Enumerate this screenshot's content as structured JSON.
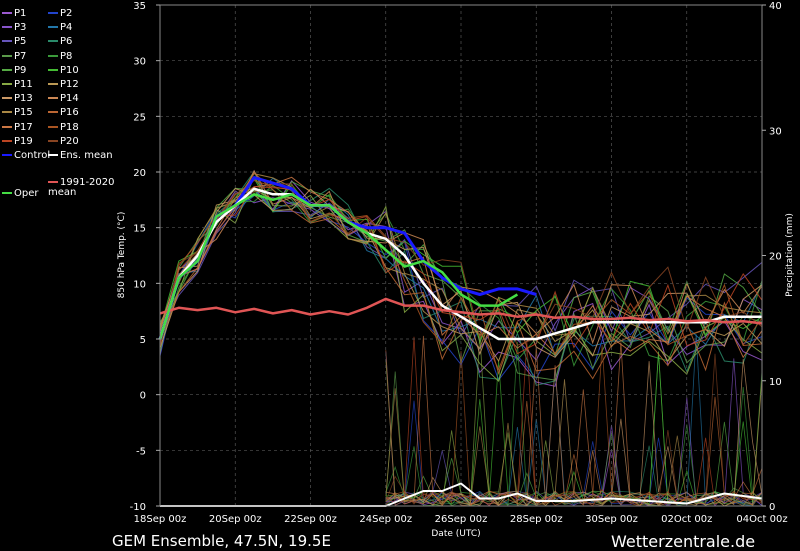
{
  "footer": {
    "model_label": "GEM Ensemble, 47.5N, 19.5E",
    "site_label": "Wetterzentrale.de"
  },
  "legend": {
    "items": [
      {
        "label": "P1",
        "color": "#9b59d0"
      },
      {
        "label": "P2",
        "color": "#2244cc"
      },
      {
        "label": "P3",
        "color": "#8855cc"
      },
      {
        "label": "P4",
        "color": "#2277aa"
      },
      {
        "label": "P5",
        "color": "#6655bb"
      },
      {
        "label": "P6",
        "color": "#2a8a6a"
      },
      {
        "label": "P7",
        "color": "#5a9a4a"
      },
      {
        "label": "P8",
        "color": "#3a9a3a"
      },
      {
        "label": "P9",
        "color": "#55aa44"
      },
      {
        "label": "P10",
        "color": "#44bb33"
      },
      {
        "label": "P11",
        "color": "#88aa44"
      },
      {
        "label": "P12",
        "color": "#bb9955"
      },
      {
        "label": "P13",
        "color": "#cc9966"
      },
      {
        "label": "P14",
        "color": "#cc8855"
      },
      {
        "label": "P15",
        "color": "#aa8844"
      },
      {
        "label": "P16",
        "color": "#bb6633"
      },
      {
        "label": "P17",
        "color": "#cc7744"
      },
      {
        "label": "P18",
        "color": "#aa5522"
      },
      {
        "label": "P19",
        "color": "#bb4422"
      },
      {
        "label": "P20",
        "color": "#884422"
      },
      {
        "label": "Control",
        "color": "#1a1aff"
      },
      {
        "label": "Ens. mean",
        "color": "#ffffff"
      },
      {
        "label": "1991-2020 mean",
        "color": "#e05555"
      },
      {
        "label": "Oper",
        "color": "#44dd44"
      }
    ]
  },
  "chart_data": {
    "type": "line",
    "xlabel": "Date (UTC)",
    "ylabel": "850 hPa Temp. (°C)",
    "y2label": "Precipitation (mm)",
    "ylim": [
      -10,
      35
    ],
    "y2lim": [
      0,
      40
    ],
    "yticks": [
      -10,
      -5,
      0,
      5,
      10,
      15,
      20,
      25,
      30,
      35
    ],
    "y2ticks": [
      0,
      10,
      20,
      30,
      40
    ],
    "xlim": [
      0,
      16
    ],
    "xticks": [
      {
        "x": 0,
        "label": "18Sep 00z"
      },
      {
        "x": 2,
        "label": "20Sep 00z"
      },
      {
        "x": 4,
        "label": "22Sep 00z"
      },
      {
        "x": 6,
        "label": "24Sep 00z"
      },
      {
        "x": 8,
        "label": "26Sep 00z"
      },
      {
        "x": 10,
        "label": "28Sep 00z"
      },
      {
        "x": 12,
        "label": "30Sep 00z"
      },
      {
        "x": 14,
        "label": "02Oct 00z"
      },
      {
        "x": 16,
        "label": "04Oct 00z"
      }
    ],
    "grid": true,
    "series": [
      {
        "name": "Control",
        "color": "#1a1aff",
        "width": 3,
        "x": [
          0,
          0.5,
          1,
          1.5,
          2,
          2.5,
          3,
          3.5,
          4,
          4.5,
          5,
          5.5,
          6,
          6.5,
          7,
          7.5,
          8,
          8.5,
          9,
          9.5,
          10
        ],
        "values": [
          5,
          10.5,
          12,
          16,
          17,
          19.5,
          19,
          18.5,
          17,
          17,
          15.5,
          15,
          15,
          14.5,
          12,
          10.5,
          9.5,
          9,
          9.5,
          9.5,
          9
        ]
      },
      {
        "name": "Ens. mean",
        "color": "#ffffff",
        "width": 2.5,
        "x": [
          0,
          0.5,
          1,
          1.5,
          2,
          2.5,
          3,
          3.5,
          4,
          4.5,
          5,
          5.5,
          6,
          6.5,
          7,
          7.5,
          8,
          8.5,
          9,
          9.5,
          10,
          10.5,
          11,
          11.5,
          12,
          12.5,
          13,
          13.5,
          14,
          14.5,
          15,
          15.5,
          16
        ],
        "values": [
          5,
          10.5,
          12.5,
          15.5,
          17,
          18.5,
          18,
          18,
          17,
          17,
          15.5,
          14.5,
          14,
          12.5,
          10,
          8,
          7,
          6,
          5,
          5,
          5,
          5.5,
          6,
          6.5,
          6.5,
          6.5,
          6.5,
          6.5,
          6.5,
          6.5,
          7,
          7,
          7
        ]
      },
      {
        "name": "1991-2020 mean",
        "color": "#e05555",
        "width": 2.5,
        "x": [
          0,
          0.5,
          1,
          1.5,
          2,
          2.5,
          3,
          3.5,
          4,
          4.5,
          5,
          5.5,
          6,
          6.5,
          7,
          7.5,
          8,
          8.5,
          9,
          9.5,
          10,
          10.5,
          11,
          11.5,
          12,
          12.5,
          13,
          13.5,
          14,
          14.5,
          15,
          15.5,
          16
        ],
        "values": [
          7.3,
          7.8,
          7.6,
          7.8,
          7.4,
          7.7,
          7.3,
          7.6,
          7.2,
          7.5,
          7.2,
          7.8,
          8.6,
          8.0,
          8.0,
          7.6,
          7.4,
          7.2,
          7.3,
          7.0,
          7.2,
          6.9,
          7.0,
          6.8,
          6.8,
          6.9,
          6.7,
          6.8,
          6.6,
          6.7,
          6.5,
          6.6,
          6.4
        ]
      },
      {
        "name": "Oper",
        "color": "#44dd44",
        "width": 2.5,
        "x": [
          0,
          0.5,
          1,
          1.5,
          2,
          2.5,
          3,
          3.5,
          4,
          4.5,
          5,
          5.5,
          6,
          6.5,
          7,
          7.5,
          8,
          8.5,
          9,
          9.5
        ],
        "values": [
          5,
          10.5,
          12,
          16,
          17,
          18,
          17.5,
          18,
          17,
          17,
          15.5,
          14.5,
          13,
          11.5,
          12,
          11,
          9,
          8,
          8,
          9
        ]
      },
      {
        "name": "Ens. mean precipitation",
        "color": "#ffffff",
        "width": 2,
        "axis": "y2",
        "x": [
          0,
          1,
          2,
          3,
          4,
          5,
          6,
          6.5,
          7,
          7.5,
          8,
          8.5,
          9,
          9.5,
          10,
          11,
          12,
          13,
          14,
          15,
          16
        ],
        "values": [
          0,
          0,
          0,
          0,
          0,
          0,
          0,
          0.6,
          1.2,
          1.2,
          1.8,
          0.6,
          0.6,
          1.0,
          0.4,
          0.4,
          0.6,
          0.4,
          0.2,
          1.0,
          0.6
        ]
      }
    ]
  }
}
